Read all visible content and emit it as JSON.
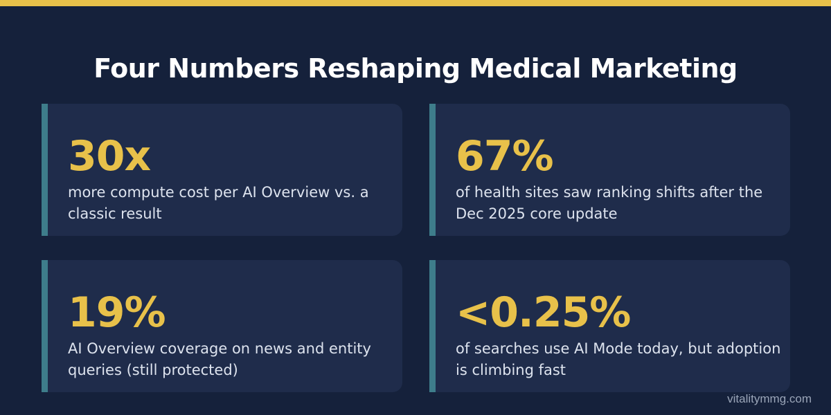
{
  "title": "Four Numbers Reshaping Medical Marketing",
  "cards": [
    {
      "stat": "30x",
      "description": "more compute cost per AI Overview vs. a classic result"
    },
    {
      "stat": "67%",
      "description": "of health sites saw ranking shifts after the Dec 2025 core update"
    },
    {
      "stat": "19%",
      "description": "AI Overview coverage on news and entity queries (still protected)"
    },
    {
      "stat": "<0.25%",
      "description": "of searches use AI Mode today, but adoption is climbing fast"
    }
  ],
  "footer": "vitalitymmg.com",
  "colors": {
    "background": "#15213b",
    "card": "#1f2c4b",
    "accent_bar": "#3e7d8b",
    "highlight": "#e8c14a",
    "text": "#dde3ee"
  }
}
